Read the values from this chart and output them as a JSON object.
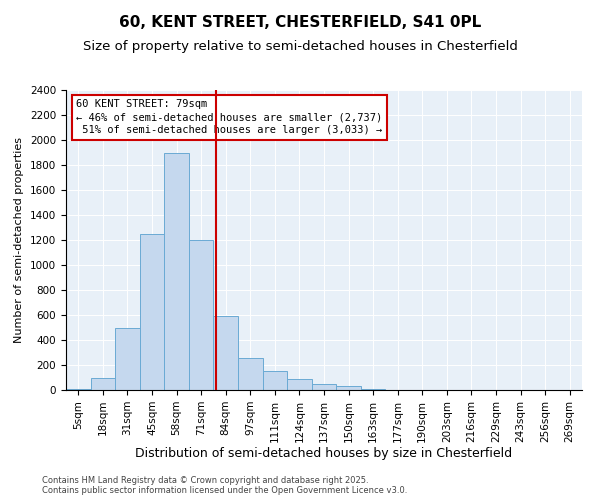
{
  "title1": "60, KENT STREET, CHESTERFIELD, S41 0PL",
  "title2": "Size of property relative to semi-detached houses in Chesterfield",
  "xlabel": "Distribution of semi-detached houses by size in Chesterfield",
  "ylabel": "Number of semi-detached properties",
  "property_label": "60 KENT STREET: 79sqm",
  "pct_smaller": 46,
  "n_smaller": 2737,
  "pct_larger": 51,
  "n_larger": 3033,
  "bin_labels": [
    "5sqm",
    "18sqm",
    "31sqm",
    "45sqm",
    "58sqm",
    "71sqm",
    "84sqm",
    "97sqm",
    "111sqm",
    "124sqm",
    "137sqm",
    "150sqm",
    "163sqm",
    "177sqm",
    "190sqm",
    "203sqm",
    "216sqm",
    "229sqm",
    "243sqm",
    "256sqm",
    "269sqm"
  ],
  "bar_values": [
    10,
    100,
    500,
    1250,
    1900,
    1200,
    590,
    260,
    150,
    90,
    50,
    30,
    10,
    0,
    0,
    0,
    0,
    0,
    0,
    0,
    0
  ],
  "bar_color": "#c5d8ee",
  "bar_edge_color": "#6aaad4",
  "vline_color": "#cc0000",
  "annotation_box_color": "#cc0000",
  "background_color": "#e8f0f8",
  "ylim": [
    0,
    2400
  ],
  "yticks": [
    0,
    200,
    400,
    600,
    800,
    1000,
    1200,
    1400,
    1600,
    1800,
    2000,
    2200,
    2400
  ],
  "footer": "Contains HM Land Registry data © Crown copyright and database right 2025.\nContains public sector information licensed under the Open Government Licence v3.0.",
  "title1_fontsize": 11,
  "title2_fontsize": 9.5,
  "xlabel_fontsize": 9,
  "ylabel_fontsize": 8,
  "tick_fontsize": 7.5,
  "annotation_fontsize": 7.5,
  "footer_fontsize": 6
}
